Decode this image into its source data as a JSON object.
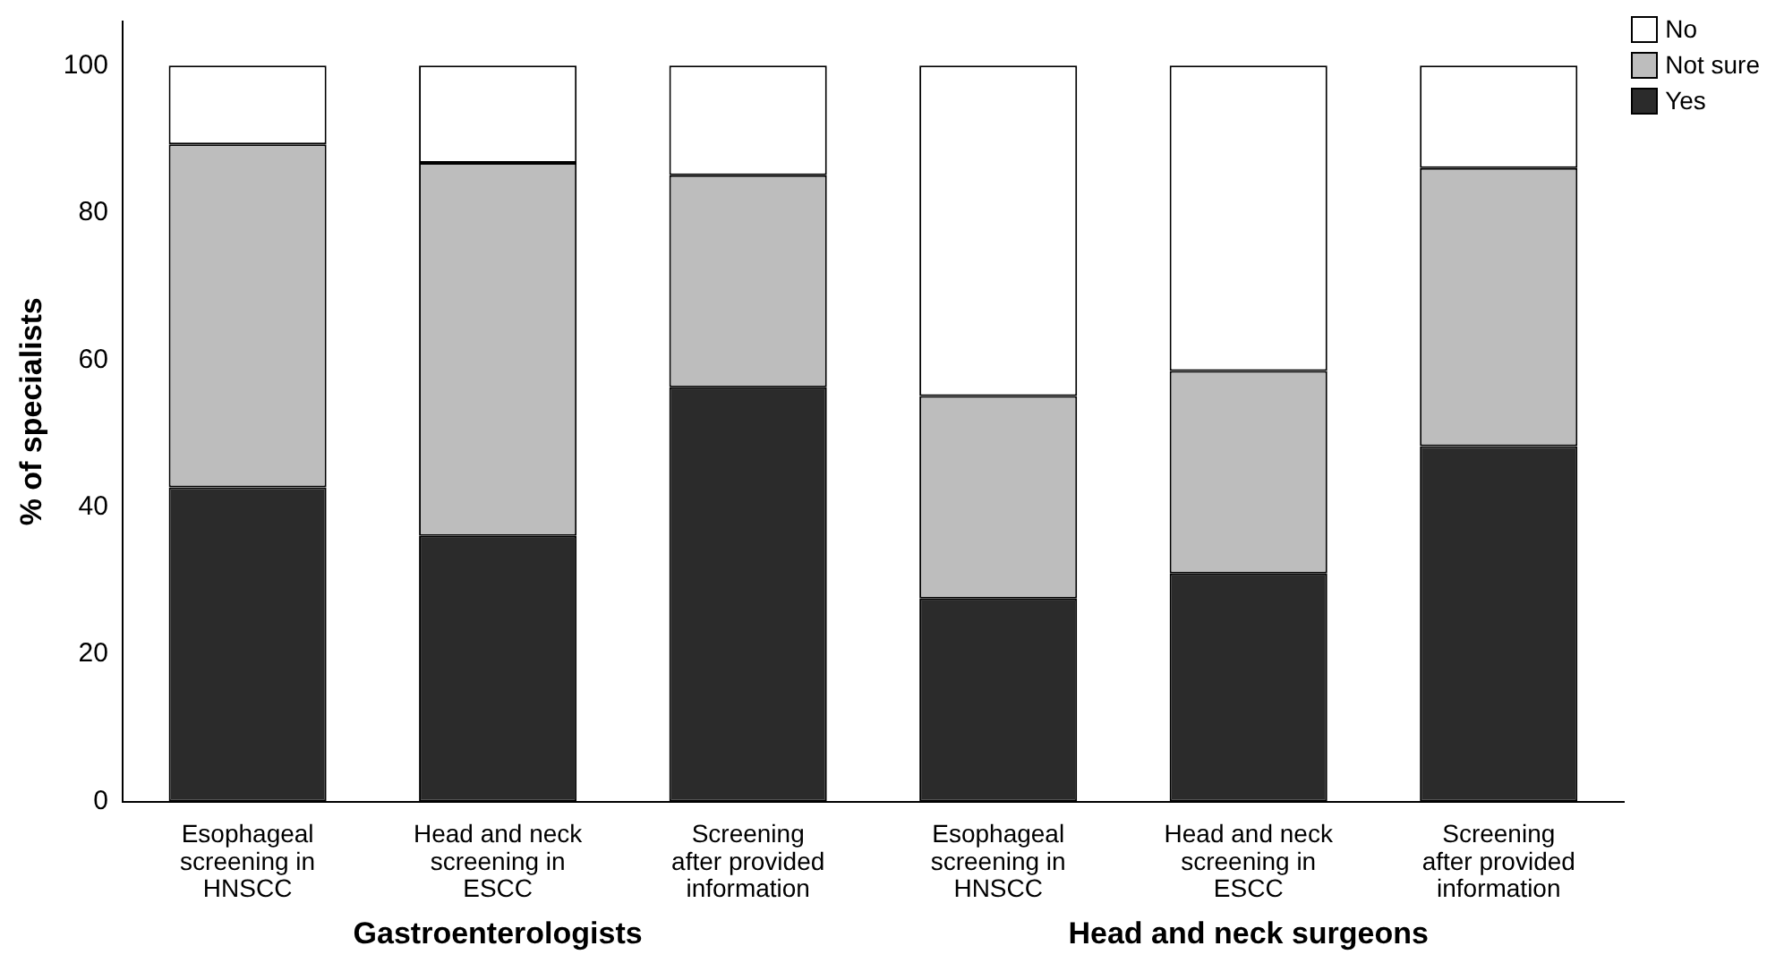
{
  "chart_data": {
    "type": "bar",
    "stacked": true,
    "ylabel": "% of specialists",
    "categories": [
      "Esophageal screening in HNSCC",
      "Head and neck screening in ESCC",
      "Screening after provided information",
      "Esophageal screening in HNSCC",
      "Head and neck screening in ESCC",
      "Screening after provided information"
    ],
    "series": [
      {
        "name": "Yes",
        "color": "#2b2b2b",
        "values": [
          42.7,
          36.1,
          56.3,
          27.6,
          31.0,
          48.3
        ]
      },
      {
        "name": "Not sure",
        "color": "#bdbdbd",
        "values": [
          46.6,
          50.7,
          28.8,
          27.5,
          27.5,
          37.8
        ]
      },
      {
        "name": "No",
        "color": "#ffffff",
        "values": [
          10.7,
          13.2,
          14.9,
          44.9,
          41.5,
          13.9
        ]
      }
    ],
    "ylim": [
      0,
      106
    ],
    "yticks": [
      0,
      20,
      40,
      60,
      80,
      100
    ],
    "grid": false,
    "legend": "top right",
    "annotations": [
      "Gastroenterologists",
      "Head and neck surgeons"
    ]
  }
}
